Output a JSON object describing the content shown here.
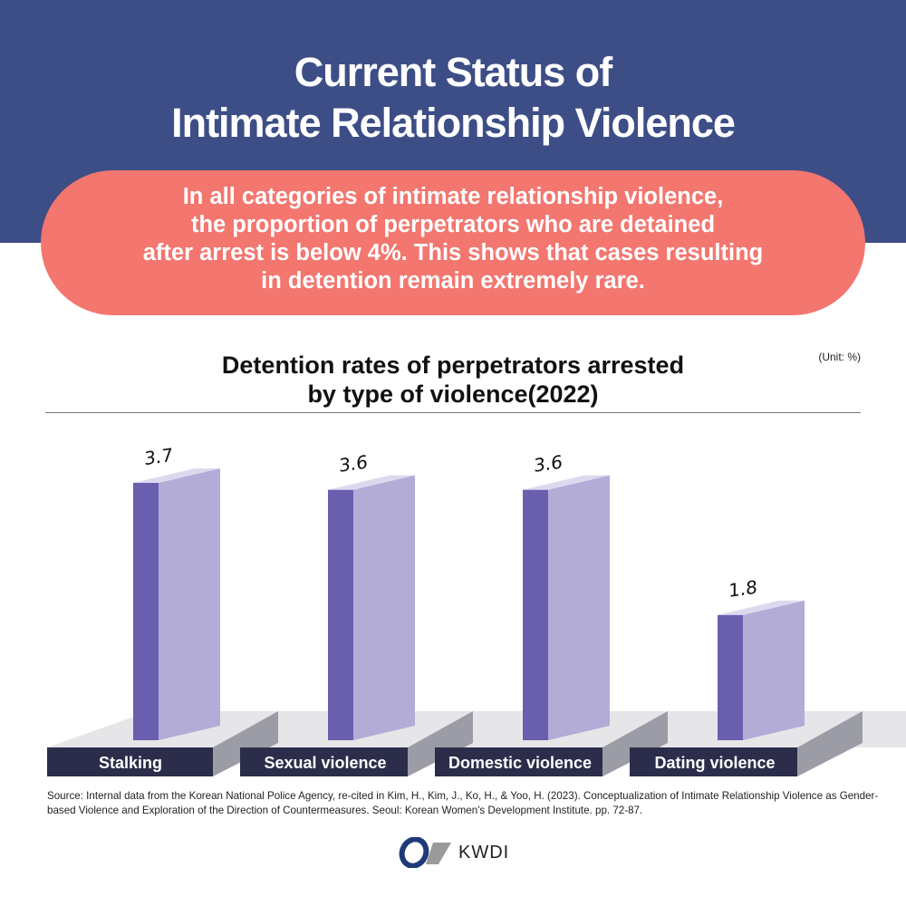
{
  "header": {
    "title_line1": "Current Status of",
    "title_line2": "Intimate Relationship Violence"
  },
  "summary": {
    "lines": [
      "In all categories of intimate relationship violence,",
      "the proportion of perpetrators who are detained",
      "after arrest is below 4%. This shows that cases resulting",
      "in detention remain extremely rare."
    ]
  },
  "chart_data": {
    "type": "bar",
    "title": "Detention rates of perpetrators arrested by type of violence(2022)",
    "title_line1": "Detention rates of perpetrators arrested",
    "title_line2": "by type of violence(2022)",
    "unit": "(Unit: %)",
    "categories": [
      "Stalking",
      "Sexual violence",
      "Domestic violence",
      "Dating violence"
    ],
    "values": [
      3.7,
      3.6,
      3.6,
      1.8
    ],
    "value_labels": [
      "3.7",
      "3.6",
      "3.6",
      "1.8"
    ],
    "ylim": [
      0,
      3.7
    ],
    "colors": {
      "front": "#6a5fae",
      "side": "#b2acd7",
      "top": "#dcd9ee",
      "label_bg": "#2b2d4a",
      "floor": "#e6e6e9",
      "floor_side": "#9c9ca6"
    }
  },
  "source": "Source: Internal data from the Korean National Police Agency, re-cited in Kim, H., Kim, J., Ko, H., & Yoo, H. (2023). Conceptualization of Intimate Relationship Violence as Gender-based Violence and Exploration of the Direction of Countermeasures. Seoul: Korean Women's Development Institute. pp. 72-87.",
  "logo": {
    "text": "KWDI"
  }
}
